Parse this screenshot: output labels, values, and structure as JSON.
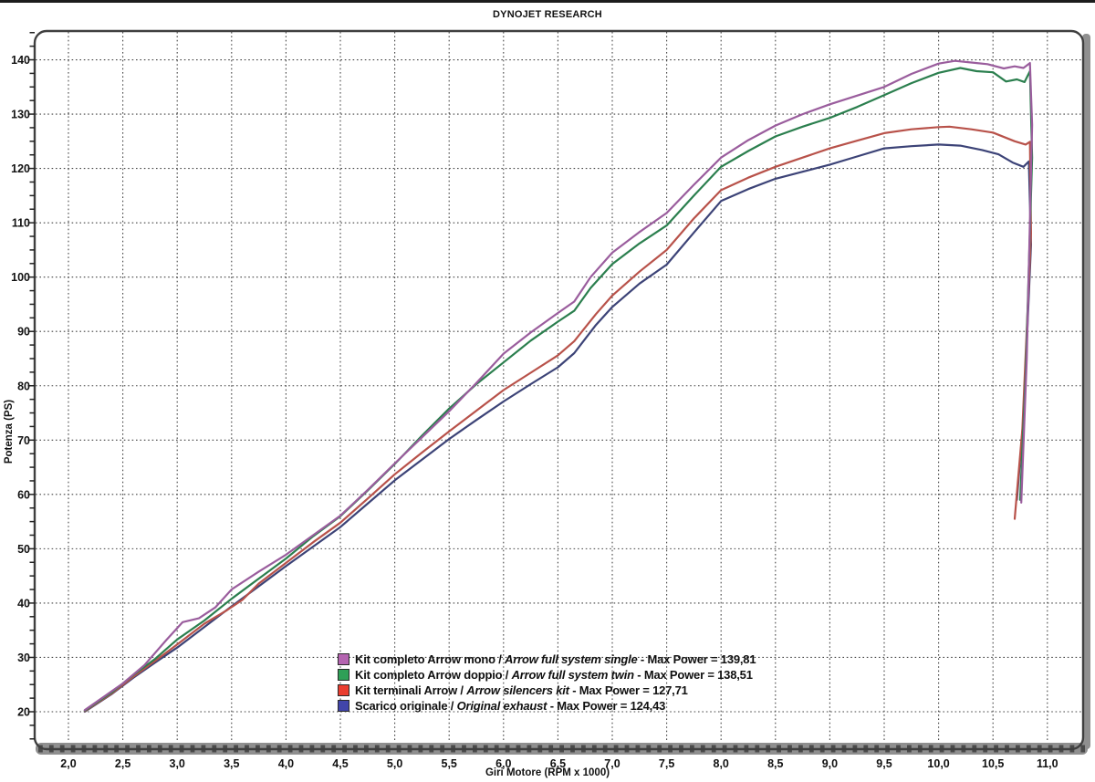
{
  "page": {
    "title": "DYNOJET RESEARCH"
  },
  "legend": {
    "sep_slash": " / ",
    "sep_dash": " - "
  },
  "chart_data": {
    "type": "line",
    "title": "DYNOJET RESEARCH",
    "xlabel": "Giri Motore (RPM x 1000)",
    "ylabel": "Potenza (PS)",
    "xlim": [
      1.69,
      11.33
    ],
    "ylim": [
      13.1,
      145.3
    ],
    "grid": "dotted, both axes, x every 0.5, y every 10",
    "legend_position": "inside bottom center",
    "x_ticks": [
      {
        "v": 2.0,
        "label": "2,0"
      },
      {
        "v": 2.5,
        "label": "2,5"
      },
      {
        "v": 3.0,
        "label": "3,0"
      },
      {
        "v": 3.5,
        "label": "3,5"
      },
      {
        "v": 4.0,
        "label": "4,0"
      },
      {
        "v": 4.5,
        "label": "4,5"
      },
      {
        "v": 5.0,
        "label": "5,0"
      },
      {
        "v": 5.5,
        "label": "5,5"
      },
      {
        "v": 6.0,
        "label": "6,0"
      },
      {
        "v": 6.5,
        "label": "6,5"
      },
      {
        "v": 7.0,
        "label": "7,0"
      },
      {
        "v": 7.5,
        "label": "7,5"
      },
      {
        "v": 8.0,
        "label": "8,0"
      },
      {
        "v": 8.5,
        "label": "8,5"
      },
      {
        "v": 9.0,
        "label": "9,0"
      },
      {
        "v": 9.5,
        "label": "9,5"
      },
      {
        "v": 10.0,
        "label": "10,0"
      },
      {
        "v": 10.5,
        "label": "10,5"
      },
      {
        "v": 11.0,
        "label": "11,0"
      }
    ],
    "y_ticks": [
      {
        "v": 20,
        "label": "20"
      },
      {
        "v": 30,
        "label": "30"
      },
      {
        "v": 40,
        "label": "40"
      },
      {
        "v": 50,
        "label": "50"
      },
      {
        "v": 60,
        "label": "60"
      },
      {
        "v": 70,
        "label": "70"
      },
      {
        "v": 80,
        "label": "80"
      },
      {
        "v": 90,
        "label": "90"
      },
      {
        "v": 100,
        "label": "100"
      },
      {
        "v": 110,
        "label": "110"
      },
      {
        "v": 120,
        "label": "120"
      },
      {
        "v": 130,
        "label": "130"
      },
      {
        "v": 140,
        "label": "140"
      }
    ],
    "series": [
      {
        "name_it": "Kit completo Arrow mono",
        "name_en": "Arrow full system single",
        "max_label": "Max Power = 139,81",
        "max_power": 139.81,
        "line_color": "#9a5d9d",
        "swatch_color": "#b464b0",
        "points": [
          [
            2.15,
            20.3
          ],
          [
            2.3,
            22.4
          ],
          [
            2.5,
            25.2
          ],
          [
            2.7,
            28.6
          ],
          [
            2.9,
            33.2
          ],
          [
            3.05,
            36.5
          ],
          [
            3.2,
            37.2
          ],
          [
            3.35,
            39.2
          ],
          [
            3.5,
            42.5
          ],
          [
            3.75,
            45.8
          ],
          [
            4.0,
            48.9
          ],
          [
            4.25,
            52.5
          ],
          [
            4.5,
            56.1
          ],
          [
            4.75,
            60.8
          ],
          [
            5.0,
            65.7
          ],
          [
            5.25,
            70.5
          ],
          [
            5.5,
            75.3
          ],
          [
            5.75,
            80.5
          ],
          [
            6.0,
            85.9
          ],
          [
            6.25,
            89.8
          ],
          [
            6.5,
            93.4
          ],
          [
            6.65,
            95.5
          ],
          [
            6.8,
            100.0
          ],
          [
            7.0,
            104.5
          ],
          [
            7.25,
            108.3
          ],
          [
            7.5,
            111.8
          ],
          [
            7.75,
            117.0
          ],
          [
            8.0,
            122.0
          ],
          [
            8.25,
            125.2
          ],
          [
            8.5,
            127.9
          ],
          [
            8.75,
            130.0
          ],
          [
            9.0,
            131.8
          ],
          [
            9.25,
            133.4
          ],
          [
            9.5,
            135.0
          ],
          [
            9.75,
            137.4
          ],
          [
            10.0,
            139.3
          ],
          [
            10.15,
            139.8
          ],
          [
            10.3,
            139.5
          ],
          [
            10.45,
            139.2
          ],
          [
            10.6,
            138.4
          ],
          [
            10.7,
            138.8
          ],
          [
            10.78,
            138.5
          ],
          [
            10.84,
            139.4
          ],
          [
            10.86,
            128.0
          ],
          [
            10.81,
            85.0
          ],
          [
            10.76,
            58.5
          ]
        ]
      },
      {
        "name_it": "Kit completo Arrow doppio",
        "name_en": "Arrow full system twin",
        "max_label": "Max Power = 138,51",
        "max_power": 138.51,
        "line_color": "#2b7f4e",
        "swatch_color": "#2fa057",
        "points": [
          [
            2.15,
            20.2
          ],
          [
            2.4,
            23.6
          ],
          [
            2.6,
            26.8
          ],
          [
            2.8,
            29.8
          ],
          [
            3.0,
            33.3
          ],
          [
            3.25,
            36.8
          ],
          [
            3.5,
            40.8
          ],
          [
            3.75,
            44.5
          ],
          [
            4.0,
            48.2
          ],
          [
            4.25,
            52.3
          ],
          [
            4.5,
            56.0
          ],
          [
            4.75,
            60.7
          ],
          [
            5.0,
            65.6
          ],
          [
            5.25,
            70.8
          ],
          [
            5.5,
            75.8
          ],
          [
            5.75,
            80.3
          ],
          [
            6.0,
            84.3
          ],
          [
            6.25,
            88.3
          ],
          [
            6.5,
            91.8
          ],
          [
            6.65,
            93.8
          ],
          [
            6.8,
            98.0
          ],
          [
            7.0,
            102.4
          ],
          [
            7.25,
            106.2
          ],
          [
            7.5,
            109.5
          ],
          [
            7.75,
            115.0
          ],
          [
            8.0,
            120.3
          ],
          [
            8.25,
            123.2
          ],
          [
            8.5,
            125.9
          ],
          [
            8.75,
            127.7
          ],
          [
            9.0,
            129.3
          ],
          [
            9.25,
            131.3
          ],
          [
            9.5,
            133.5
          ],
          [
            9.75,
            135.7
          ],
          [
            10.0,
            137.6
          ],
          [
            10.2,
            138.5
          ],
          [
            10.35,
            137.9
          ],
          [
            10.5,
            137.7
          ],
          [
            10.62,
            136.0
          ],
          [
            10.72,
            136.4
          ],
          [
            10.79,
            135.9
          ],
          [
            10.84,
            137.9
          ],
          [
            10.86,
            122.0
          ],
          [
            10.8,
            82.0
          ],
          [
            10.75,
            59.0
          ]
        ]
      },
      {
        "name_it": "Kit terminali Arrow",
        "name_en": "Arrow silencers kit",
        "max_label": "Max Power = 127,71",
        "max_power": 127.71,
        "line_color": "#b8524a",
        "swatch_color": "#ea3e30",
        "points": [
          [
            2.15,
            20.1
          ],
          [
            2.4,
            23.4
          ],
          [
            2.6,
            26.5
          ],
          [
            2.8,
            29.4
          ],
          [
            3.0,
            32.4
          ],
          [
            3.25,
            36.2
          ],
          [
            3.45,
            38.6
          ],
          [
            3.6,
            40.6
          ],
          [
            3.75,
            43.6
          ],
          [
            4.0,
            47.4
          ],
          [
            4.25,
            51.2
          ],
          [
            4.5,
            54.8
          ],
          [
            4.75,
            59.2
          ],
          [
            5.0,
            63.7
          ],
          [
            5.25,
            67.7
          ],
          [
            5.5,
            71.6
          ],
          [
            5.75,
            75.4
          ],
          [
            6.0,
            79.2
          ],
          [
            6.25,
            82.4
          ],
          [
            6.5,
            85.6
          ],
          [
            6.65,
            88.2
          ],
          [
            6.85,
            93.2
          ],
          [
            7.0,
            96.6
          ],
          [
            7.25,
            101.0
          ],
          [
            7.5,
            105.0
          ],
          [
            7.75,
            110.8
          ],
          [
            8.0,
            116.0
          ],
          [
            8.25,
            118.3
          ],
          [
            8.5,
            120.3
          ],
          [
            8.75,
            122.0
          ],
          [
            9.0,
            123.7
          ],
          [
            9.25,
            125.1
          ],
          [
            9.5,
            126.5
          ],
          [
            9.75,
            127.2
          ],
          [
            10.0,
            127.6
          ],
          [
            10.1,
            127.7
          ],
          [
            10.3,
            127.2
          ],
          [
            10.5,
            126.6
          ],
          [
            10.7,
            125.0
          ],
          [
            10.8,
            124.4
          ],
          [
            10.84,
            124.9
          ],
          [
            10.85,
            108.0
          ],
          [
            10.77,
            72.0
          ],
          [
            10.7,
            55.5
          ]
        ]
      },
      {
        "name_it": "Scarico originale",
        "name_en": "Original exhaust",
        "max_label": "Max Power = 124,43",
        "max_power": 124.43,
        "line_color": "#3c4377",
        "swatch_color": "#4145aa",
        "points": [
          [
            2.15,
            20.0
          ],
          [
            2.4,
            23.3
          ],
          [
            2.6,
            26.3
          ],
          [
            2.8,
            29.1
          ],
          [
            3.0,
            31.8
          ],
          [
            3.25,
            35.6
          ],
          [
            3.5,
            39.4
          ],
          [
            3.75,
            43.1
          ],
          [
            4.0,
            46.8
          ],
          [
            4.25,
            50.4
          ],
          [
            4.5,
            54.0
          ],
          [
            4.75,
            58.3
          ],
          [
            5.0,
            62.6
          ],
          [
            5.25,
            66.4
          ],
          [
            5.5,
            70.2
          ],
          [
            5.75,
            73.7
          ],
          [
            6.0,
            77.1
          ],
          [
            6.25,
            80.3
          ],
          [
            6.5,
            83.4
          ],
          [
            6.65,
            86.0
          ],
          [
            6.85,
            91.2
          ],
          [
            7.0,
            94.5
          ],
          [
            7.25,
            98.8
          ],
          [
            7.5,
            102.3
          ],
          [
            7.75,
            108.2
          ],
          [
            8.0,
            114.0
          ],
          [
            8.25,
            116.2
          ],
          [
            8.5,
            118.1
          ],
          [
            8.75,
            119.4
          ],
          [
            9.0,
            120.7
          ],
          [
            9.25,
            122.2
          ],
          [
            9.5,
            123.7
          ],
          [
            9.75,
            124.1
          ],
          [
            10.0,
            124.4
          ],
          [
            10.2,
            124.2
          ],
          [
            10.4,
            123.4
          ],
          [
            10.55,
            122.6
          ],
          [
            10.68,
            121.1
          ],
          [
            10.78,
            120.3
          ],
          [
            10.83,
            121.3
          ],
          [
            10.85,
            106.0
          ],
          [
            10.78,
            74.0
          ],
          [
            10.72,
            59.0
          ]
        ]
      }
    ],
    "style": {
      "grid_color": "#454545",
      "frame_color": "#3f3f3f",
      "axis_bar_color": "#8f8f8f",
      "axis_bar_tick_color": "#4a4a4a",
      "text_color": "#111111",
      "background": "#ffffff"
    }
  }
}
